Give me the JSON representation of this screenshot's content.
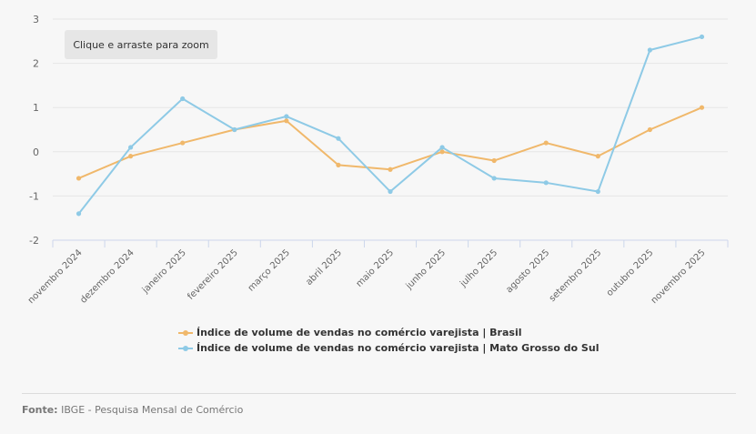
{
  "zoom_hint": "Clique e arraste para zoom",
  "footer": {
    "label": "Fonte:",
    "text": "IBGE - Pesquisa Mensal de Comércio"
  },
  "chart_data": {
    "type": "line",
    "categories": [
      "novembro 2024",
      "dezembro 2024",
      "janeiro 2025",
      "fevereiro 2025",
      "março 2025",
      "abril 2025",
      "maio 2025",
      "junho 2025",
      "julho 2025",
      "agosto 2025",
      "setembro 2025",
      "outubro 2025",
      "novembro 2025"
    ],
    "yticks": [
      "3",
      "2",
      "1",
      "0",
      "-1",
      "-2"
    ],
    "ylim": [
      -2,
      3
    ],
    "grid": true,
    "legend_position": "bottom",
    "series": [
      {
        "name": "Índice de volume de vendas no comércio varejista | Brasil",
        "color": "#f0b86b",
        "values": [
          -0.6,
          -0.1,
          0.2,
          0.5,
          0.7,
          -0.3,
          -0.4,
          0.0,
          -0.2,
          0.2,
          -0.1,
          0.5,
          1.0
        ]
      },
      {
        "name": "Índice de volume de vendas no comércio varejista | Mato Grosso do Sul",
        "color": "#8ecae6",
        "values": [
          -1.4,
          0.1,
          1.2,
          0.5,
          0.8,
          0.3,
          -0.9,
          0.1,
          -0.6,
          -0.7,
          -0.9,
          2.3,
          2.6
        ]
      }
    ]
  }
}
